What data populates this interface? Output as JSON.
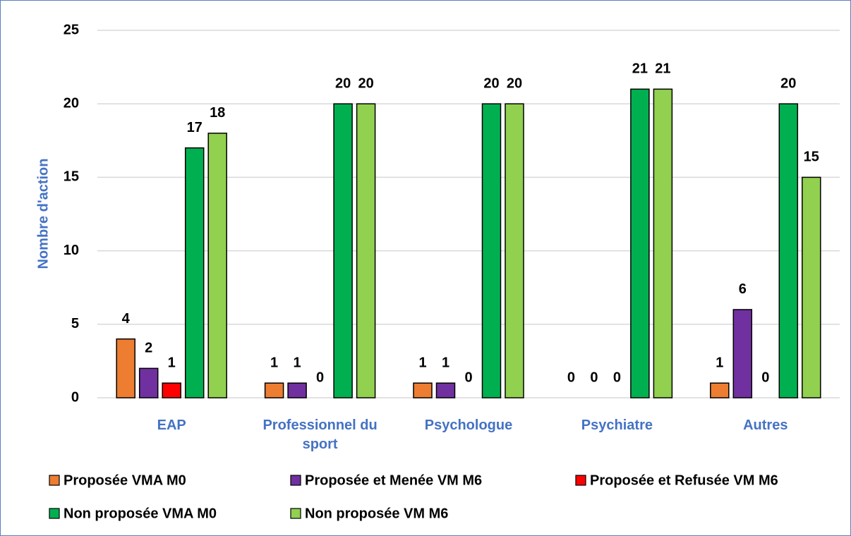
{
  "chart_data": {
    "type": "bar",
    "y_label": "Nombre d'action",
    "categories": [
      "EAP",
      "Professionnel du sport",
      "Psychologue",
      "Psychiatre",
      "Autres"
    ],
    "series": [
      {
        "name": "Proposée VMA M0",
        "color": "#ed7d31",
        "values": [
          4,
          1,
          1,
          0,
          1
        ]
      },
      {
        "name": "Proposée et Menée VM M6",
        "color": "#7030a0",
        "values": [
          2,
          1,
          1,
          0,
          6
        ]
      },
      {
        "name": "Proposée et Refusée VM M6",
        "color": "#ff0000",
        "values": [
          1,
          0,
          0,
          0,
          0
        ]
      },
      {
        "name": "Non proposée VMA M0",
        "color": "#00b050",
        "values": [
          17,
          20,
          20,
          21,
          20
        ]
      },
      {
        "name": "Non proposée VM M6",
        "color": "#92d050",
        "values": [
          18,
          20,
          20,
          21,
          15
        ]
      }
    ],
    "ylim": [
      0,
      25
    ],
    "yticks": [
      0,
      5,
      10,
      15,
      20,
      25
    ],
    "grid": true,
    "legend": "bottom"
  }
}
